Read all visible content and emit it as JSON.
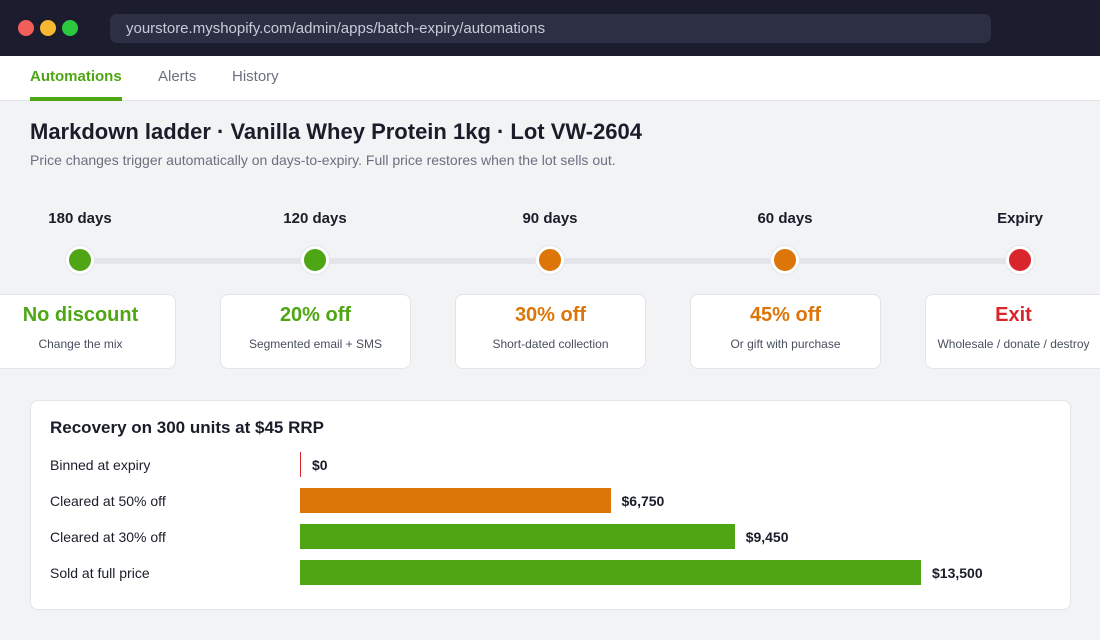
{
  "browser": {
    "url": "yourstore.myshopify.com/admin/apps/batch-expiry/automations"
  },
  "tabs": [
    {
      "label": "Automations",
      "active": true
    },
    {
      "label": "Alerts",
      "active": false
    },
    {
      "label": "History",
      "active": false
    }
  ],
  "page": {
    "title": "Markdown ladder  ·  Vanilla Whey Protein 1kg  ·  Lot VW-2604",
    "subtitle": "Price changes trigger automatically on days-to-expiry. Full price restores when the lot sells out."
  },
  "colors": {
    "green": "#4fa615",
    "orange": "#dc7609",
    "red": "#d9262c"
  },
  "ladder": [
    {
      "when": "180 days",
      "action": "No discount",
      "note": "Change the mix",
      "status": "green"
    },
    {
      "when": "120 days",
      "action": "20% off",
      "note": "Segmented email + SMS",
      "status": "green"
    },
    {
      "when": "90 days",
      "action": "30% off",
      "note": "Short-dated collection",
      "status": "orange"
    },
    {
      "when": "60 days",
      "action": "45% off",
      "note": "Or gift with purchase",
      "status": "orange"
    },
    {
      "when": "Expiry",
      "action": "Exit",
      "note": "Wholesale / donate / destroy",
      "status": "red"
    }
  ],
  "recovery": {
    "title": "Recovery on 300 units at $45 RRP",
    "rows": [
      {
        "label": "Binned at expiry",
        "value": 0,
        "display": "$0",
        "status": "red"
      },
      {
        "label": "Cleared at 50% off",
        "value": 6750,
        "display": "$6,750",
        "status": "orange"
      },
      {
        "label": "Cleared at 30% off",
        "value": 9450,
        "display": "$9,450",
        "status": "green"
      },
      {
        "label": "Sold at full price",
        "value": 13500,
        "display": "$13,500",
        "status": "green"
      }
    ]
  }
}
